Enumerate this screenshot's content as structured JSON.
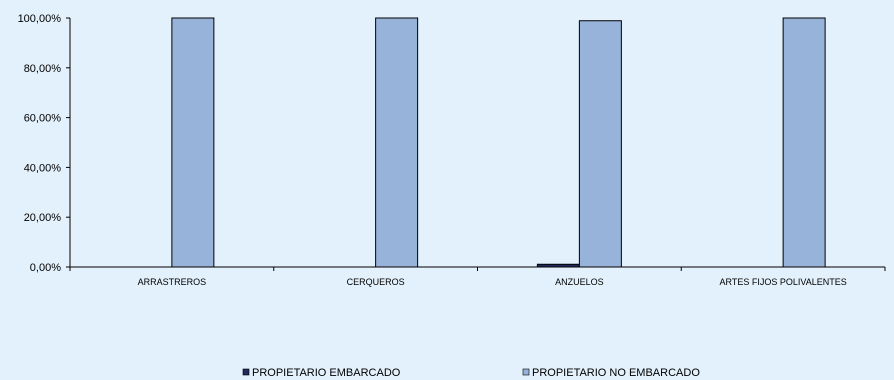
{
  "chart_data": {
    "type": "bar",
    "categories": [
      "ARRASTREROS",
      "CERQUEROS",
      "ANZUELOS",
      "ARTES FIJOS POLIVALENTES"
    ],
    "series": [
      {
        "name": "PROPIETARIO EMBARCADO",
        "values": [
          0,
          0,
          1.1,
          0
        ],
        "color": "#1f2b5c"
      },
      {
        "name": "PROPIETARIO NO EMBARCADO",
        "values": [
          100,
          100,
          98.9,
          100
        ],
        "color": "#98b3d9"
      }
    ],
    "yticks": [
      "0,00%",
      "20,00%",
      "40,00%",
      "60,00%",
      "80,00%",
      "100,00%"
    ],
    "ylim": [
      0,
      100
    ],
    "grid": false,
    "legend_position": "bottom",
    "background": "#e3f1fc"
  }
}
